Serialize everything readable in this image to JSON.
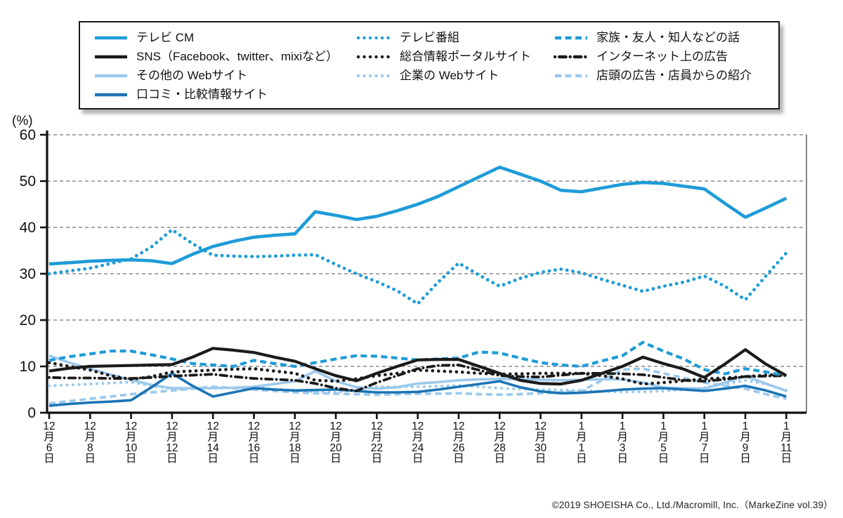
{
  "colors": {
    "blue": "#1E9CD8",
    "pale_blue": "#9CC9EC",
    "dark_blue": "#1B74B4",
    "black": "#1B1B1B",
    "grid": "#8A8A8A",
    "axis": "#111111"
  },
  "legend": {
    "items": [
      {
        "key": "tv_cm",
        "label": "テレビ CM",
        "style": "solid",
        "color": "blue"
      },
      {
        "key": "tv_program",
        "label": "テレビ番組",
        "style": "dotted",
        "color": "blue"
      },
      {
        "key": "family",
        "label": "家族・友人・知人などの話",
        "style": "dashed",
        "color": "blue"
      },
      {
        "key": "sns",
        "label": "SNS（Facebook、twitter、mixiなど）",
        "style": "solid",
        "color": "black"
      },
      {
        "key": "portal",
        "label": "総合情報ポータルサイト",
        "style": "dotted",
        "color": "black"
      },
      {
        "key": "net_ad",
        "label": "インターネット上の広告",
        "style": "dashdot",
        "color": "black"
      },
      {
        "key": "other_web",
        "label": "その他の Webサイト",
        "style": "solid",
        "color": "pale_blue"
      },
      {
        "key": "corp_web",
        "label": "企業の Webサイト",
        "style": "dotted",
        "color": "pale_blue"
      },
      {
        "key": "store",
        "label": "店頭の広告・店員からの紹介",
        "style": "dashed",
        "color": "pale_blue"
      },
      {
        "key": "kuchikomi",
        "label": "口コミ・比較情報サイト",
        "style": "solid",
        "color": "dark_blue"
      }
    ],
    "rows": [
      [
        0,
        1,
        2
      ],
      [
        3,
        4,
        5
      ],
      [
        6,
        7,
        8
      ],
      [
        9
      ]
    ]
  },
  "y_axis": {
    "unit": "(%)",
    "ticks": [
      0,
      10,
      20,
      30,
      40,
      50,
      60
    ],
    "max": 60
  },
  "x_axis": {
    "tick_labels": [
      {
        "month": "12",
        "day": "6"
      },
      {
        "month": "12",
        "day": "8"
      },
      {
        "month": "12",
        "day": "10"
      },
      {
        "month": "12",
        "day": "12"
      },
      {
        "month": "12",
        "day": "14"
      },
      {
        "month": "12",
        "day": "16"
      },
      {
        "month": "12",
        "day": "18"
      },
      {
        "month": "12",
        "day": "20"
      },
      {
        "month": "12",
        "day": "22"
      },
      {
        "month": "12",
        "day": "24"
      },
      {
        "month": "12",
        "day": "26"
      },
      {
        "month": "12",
        "day": "28"
      },
      {
        "month": "12",
        "day": "30"
      },
      {
        "month": "1",
        "day": "1"
      },
      {
        "month": "1",
        "day": "3"
      },
      {
        "month": "1",
        "day": "5"
      },
      {
        "month": "1",
        "day": "7"
      },
      {
        "month": "1",
        "day": "9"
      },
      {
        "month": "1",
        "day": "11"
      }
    ],
    "month_suffix": "月",
    "day_suffix": "日"
  },
  "chart_data": {
    "type": "line",
    "ylim": [
      0,
      60
    ],
    "grid": "dashed-horizontal",
    "legend_position": "top",
    "x_daily": [
      "12/6",
      "12/7",
      "12/8",
      "12/9",
      "12/10",
      "12/11",
      "12/12",
      "12/13",
      "12/14",
      "12/15",
      "12/16",
      "12/17",
      "12/18",
      "12/19",
      "12/20",
      "12/21",
      "12/22",
      "12/23",
      "12/24",
      "12/25",
      "12/26",
      "12/27",
      "12/28",
      "12/29",
      "12/30",
      "12/31",
      "1/1",
      "1/2",
      "1/3",
      "1/4",
      "1/5",
      "1/6",
      "1/7",
      "1/8",
      "1/9",
      "1/10",
      "1/11"
    ],
    "series": [
      {
        "name": "テレビ CM",
        "key": "tv_cm",
        "color": "blue",
        "style": "solid",
        "values": [
          32.1,
          32.4,
          32.7,
          32.9,
          33.0,
          32.8,
          32.2,
          34.2,
          35.9,
          37.0,
          37.9,
          38.3,
          38.6,
          43.4,
          42.6,
          41.7,
          42.4,
          43.6,
          45.0,
          46.7,
          48.8,
          50.9,
          53.0,
          51.5,
          50.0,
          48.0,
          47.7,
          48.5,
          49.3,
          49.7,
          49.5,
          48.9,
          48.3,
          45.2,
          42.2,
          44.2,
          46.3
        ]
      },
      {
        "name": "テレビ番組",
        "key": "tv_program",
        "color": "blue",
        "style": "dotted",
        "values": [
          30.0,
          30.6,
          31.2,
          32.2,
          33.2,
          35.8,
          39.5,
          36.5,
          34.0,
          33.8,
          33.7,
          33.8,
          34.0,
          34.1,
          32.0,
          30.0,
          28.3,
          26.3,
          23.5,
          28.2,
          32.3,
          29.7,
          27.3,
          29.0,
          30.3,
          31.0,
          30.2,
          28.8,
          27.5,
          26.2,
          27.3,
          28.2,
          29.5,
          27.3,
          24.4,
          29.5,
          34.5
        ]
      },
      {
        "name": "家族・友人・知人などの話",
        "key": "family",
        "color": "blue",
        "style": "dashed",
        "values": [
          11.3,
          12.1,
          12.7,
          13.3,
          13.3,
          12.5,
          11.6,
          10.6,
          10.3,
          10.0,
          11.3,
          10.6,
          10.0,
          10.8,
          11.6,
          12.3,
          12.2,
          11.8,
          11.4,
          11.6,
          11.8,
          13.1,
          12.9,
          11.8,
          10.8,
          10.3,
          10.0,
          11.2,
          12.3,
          15.2,
          13.3,
          11.6,
          9.3,
          8.4,
          9.5,
          8.8,
          8.0
        ]
      },
      {
        "name": "SNS（Facebook、twitter、mixiなど）",
        "key": "sns",
        "color": "black",
        "style": "solid",
        "values": [
          9.0,
          9.6,
          10.0,
          10.1,
          10.2,
          10.3,
          10.4,
          12.0,
          13.9,
          13.5,
          13.0,
          12.0,
          11.1,
          9.5,
          8.0,
          6.9,
          8.5,
          10.0,
          11.4,
          11.5,
          11.5,
          10.0,
          8.5,
          7.0,
          6.3,
          6.2,
          7.0,
          8.5,
          10.0,
          12.0,
          10.6,
          9.4,
          7.6,
          10.5,
          13.6,
          10.5,
          8.0
        ]
      },
      {
        "name": "総合情報ポータルサイト",
        "key": "portal",
        "color": "black",
        "style": "dotted",
        "values": [
          10.8,
          10.0,
          9.2,
          8.0,
          7.2,
          7.8,
          8.8,
          9.0,
          9.2,
          9.4,
          9.5,
          9.0,
          8.5,
          7.0,
          6.8,
          7.3,
          8.0,
          8.5,
          9.2,
          9.0,
          8.8,
          8.5,
          8.3,
          8.4,
          8.5,
          8.5,
          8.5,
          8.0,
          7.3,
          6.2,
          6.5,
          6.9,
          7.3,
          7.5,
          7.8,
          8.1,
          8.4
        ]
      },
      {
        "name": "インターネット上の広告",
        "key": "net_ad",
        "color": "black",
        "style": "dashdot",
        "values": [
          7.6,
          7.5,
          7.5,
          7.4,
          7.4,
          7.6,
          7.9,
          8.1,
          8.3,
          7.8,
          7.4,
          7.2,
          7.0,
          6.3,
          5.3,
          4.7,
          6.5,
          8.0,
          9.5,
          10.2,
          10.3,
          9.2,
          8.0,
          7.8,
          7.7,
          8.1,
          8.5,
          8.5,
          8.4,
          8.2,
          7.6,
          7.0,
          6.8,
          7.2,
          7.8,
          7.9,
          8.0
        ]
      },
      {
        "name": "その他の Webサイト",
        "key": "other_web",
        "color": "pale_blue",
        "style": "solid",
        "values": [
          12.3,
          10.8,
          9.5,
          8.2,
          7.1,
          6.0,
          5.3,
          5.3,
          5.3,
          5.4,
          5.6,
          6.2,
          6.8,
          9.0,
          6.8,
          5.5,
          5.2,
          5.5,
          6.3,
          6.6,
          7.0,
          7.2,
          7.3,
          7.2,
          7.1,
          7.0,
          7.1,
          7.2,
          7.2,
          6.5,
          5.4,
          5.3,
          5.2,
          6.5,
          7.9,
          6.3,
          4.7
        ]
      },
      {
        "name": "企業の Webサイト",
        "key": "corp_web",
        "color": "pale_blue",
        "style": "dotted",
        "values": [
          5.8,
          6.0,
          6.2,
          6.4,
          6.6,
          5.8,
          5.1,
          5.2,
          5.3,
          5.4,
          5.5,
          5.1,
          4.8,
          4.5,
          4.4,
          5.0,
          5.6,
          5.6,
          5.6,
          5.7,
          5.9,
          5.6,
          5.3,
          5.1,
          5.0,
          4.9,
          4.8,
          4.6,
          4.5,
          4.5,
          4.7,
          5.0,
          5.4,
          6.2,
          7.0,
          6.2,
          4.8
        ]
      },
      {
        "name": "店頭の広告・店員からの紹介",
        "key": "store",
        "color": "pale_blue",
        "style": "dashed",
        "values": [
          2.0,
          2.5,
          3.0,
          3.5,
          4.0,
          4.4,
          4.8,
          5.2,
          5.6,
          5.3,
          5.0,
          4.7,
          4.4,
          4.2,
          4.1,
          4.0,
          3.9,
          4.0,
          4.1,
          4.1,
          4.2,
          4.0,
          3.9,
          4.0,
          4.2,
          4.4,
          4.7,
          7.0,
          9.3,
          9.5,
          8.5,
          7.5,
          6.5,
          5.8,
          5.2,
          4.0,
          3.0
        ]
      },
      {
        "name": "口コミ・比較情報サイト",
        "key": "kuchikomi",
        "color": "dark_blue",
        "style": "solid",
        "values": [
          1.5,
          1.9,
          2.2,
          2.4,
          2.7,
          5.5,
          8.5,
          5.8,
          3.5,
          4.4,
          5.3,
          5.0,
          4.8,
          4.9,
          5.0,
          4.7,
          4.4,
          4.4,
          4.5,
          5.0,
          5.6,
          6.2,
          6.8,
          5.5,
          4.6,
          4.2,
          4.3,
          4.6,
          5.0,
          5.2,
          5.3,
          5.0,
          4.7,
          5.2,
          5.8,
          4.8,
          3.5
        ]
      }
    ]
  },
  "footer": {
    "copyright": "©2019 SHOEISHA Co., Ltd./Macromill, Inc.（MarkeZine vol.39）"
  }
}
